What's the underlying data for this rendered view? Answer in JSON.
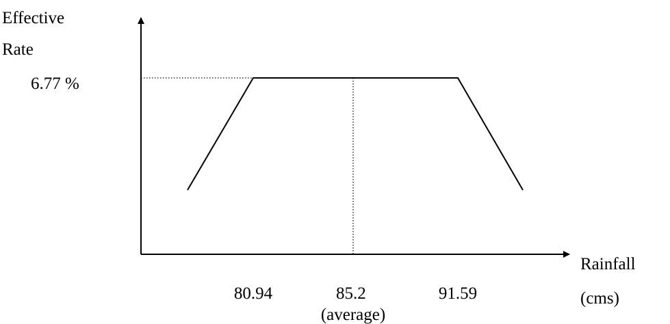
{
  "chart_data": {
    "type": "line",
    "ylabel_lines": [
      "Effective",
      "Rate"
    ],
    "xlabel_lines": [
      "Rainfall",
      "(cms)"
    ],
    "y_marker": {
      "label": "6.77 %",
      "value": 6.77
    },
    "x_ticks": [
      {
        "lines": [
          "80.94"
        ],
        "value": 80.94
      },
      {
        "lines": [
          "85.2",
          "(average)"
        ],
        "value": 85.2
      },
      {
        "lines": [
          "91.59"
        ],
        "value": 91.59
      }
    ],
    "series": [
      {
        "points": [
          {
            "x": 79.4,
            "y": 4.1
          },
          {
            "x": 80.94,
            "y": 6.77
          },
          {
            "x": 91.59,
            "y": 6.77
          },
          {
            "x": 93.1,
            "y": 4.1
          }
        ]
      }
    ],
    "reference_lines": [
      {
        "axis": "y",
        "value": 6.77,
        "style": "dotted"
      },
      {
        "axis": "x",
        "value": 85.2,
        "style": "dotted"
      }
    ],
    "colors": {
      "line": "#000000",
      "background": "#ffffff"
    }
  }
}
